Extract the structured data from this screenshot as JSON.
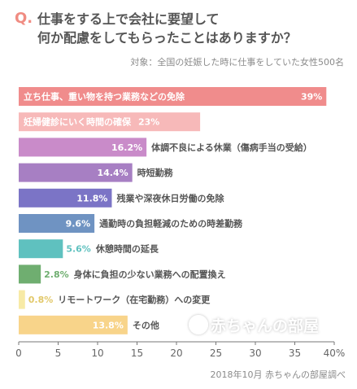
{
  "header": {
    "q_label": "Q.",
    "title_line1": "仕事をする上で会社に要望して",
    "title_line2": "何か配慮をしてもらったことはありますか？",
    "subtitle": "対象：全国の妊娠した時に仕事をしていた女性500名"
  },
  "footer": {
    "source": "2018年10月 赤ちゃんの部屋調べ",
    "watermark": "赤ちゃんの部屋"
  },
  "chart_data": {
    "type": "bar",
    "orientation": "horizontal",
    "categories": [
      "立ち仕事、重い物を持つ業務などの免除",
      "妊婦健診にいく時間の確保",
      "体調不良による休業（傷病手当の受給）",
      "時短勤務",
      "残業や深夜休日労働の免除",
      "通勤時の負担軽減のための時差勤務",
      "休憩時間の延長",
      "身体に負担の少ない業務への配置換え",
      "リモートワーク（在宅勤務）への変更",
      "その他"
    ],
    "values": [
      39,
      23,
      16.2,
      14.4,
      11.8,
      9.6,
      5.6,
      2.8,
      0.8,
      13.8
    ],
    "value_labels": [
      "39%",
      "23%",
      "16.2%",
      "14.4%",
      "11.8%",
      "9.6%",
      "5.6%",
      "2.8%",
      "0.8%",
      "13.8%"
    ],
    "colors": [
      "#f08c8c",
      "#f7b9b9",
      "#c98bc9",
      "#a77fc3",
      "#7b74c6",
      "#6f93c2",
      "#5fc1bf",
      "#6fae70",
      "#f7eaa6",
      "#f8d48a"
    ],
    "label_colors": [
      "#ffffff",
      "#ffffff",
      "#ffffff",
      "#ffffff",
      "#ffffff",
      "#ffffff",
      "#5fc1bf",
      "#6fae70",
      "#e2c869",
      "#ffffff"
    ],
    "x_ticks": [
      "0",
      "5",
      "10",
      "15",
      "20",
      "25",
      "30",
      "35",
      "40%"
    ],
    "xlim": [
      0,
      40
    ],
    "grid": false,
    "legend": false
  }
}
